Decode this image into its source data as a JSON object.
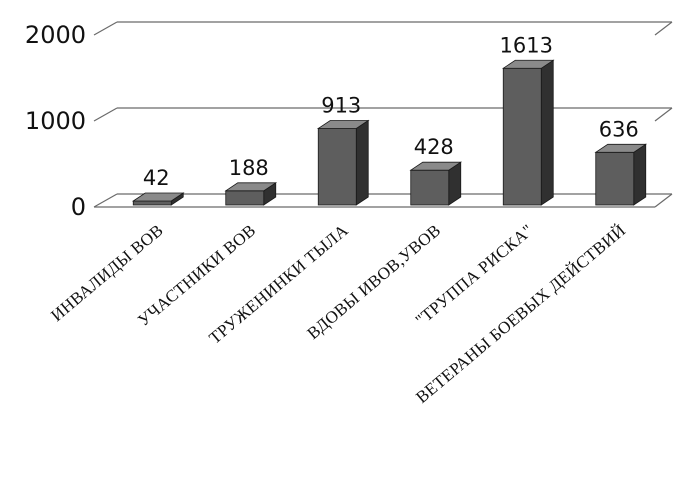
{
  "chart_data": {
    "type": "bar",
    "categories": [
      "ИНВАЛИДЫ ВОВ",
      "УЧАСТНИКИ ВОВ",
      "ТРУЖЕНИНКИ ТЫЛА",
      "ВДОВЫ ИВОВ,УВОВ",
      "\"ТРУППА РИСКА\"",
      "ВЕТЕРАНЫ БОЕВЫХ ДЕЙСТВИЙ"
    ],
    "values": [
      42,
      188,
      913,
      428,
      1613,
      636
    ],
    "data_labels": [
      "42",
      "188",
      "913",
      "428",
      "1613",
      "636"
    ],
    "y_ticks": [
      "0",
      "1000",
      "2000"
    ],
    "ylim": [
      0,
      2000
    ],
    "grid": true,
    "legend": "none",
    "style": "3d-column",
    "colors": {
      "bar_front": "#5e5e5e",
      "bar_top": "#8a8a8a",
      "bar_side": "#303030",
      "grid": "#6a6a6a"
    }
  }
}
